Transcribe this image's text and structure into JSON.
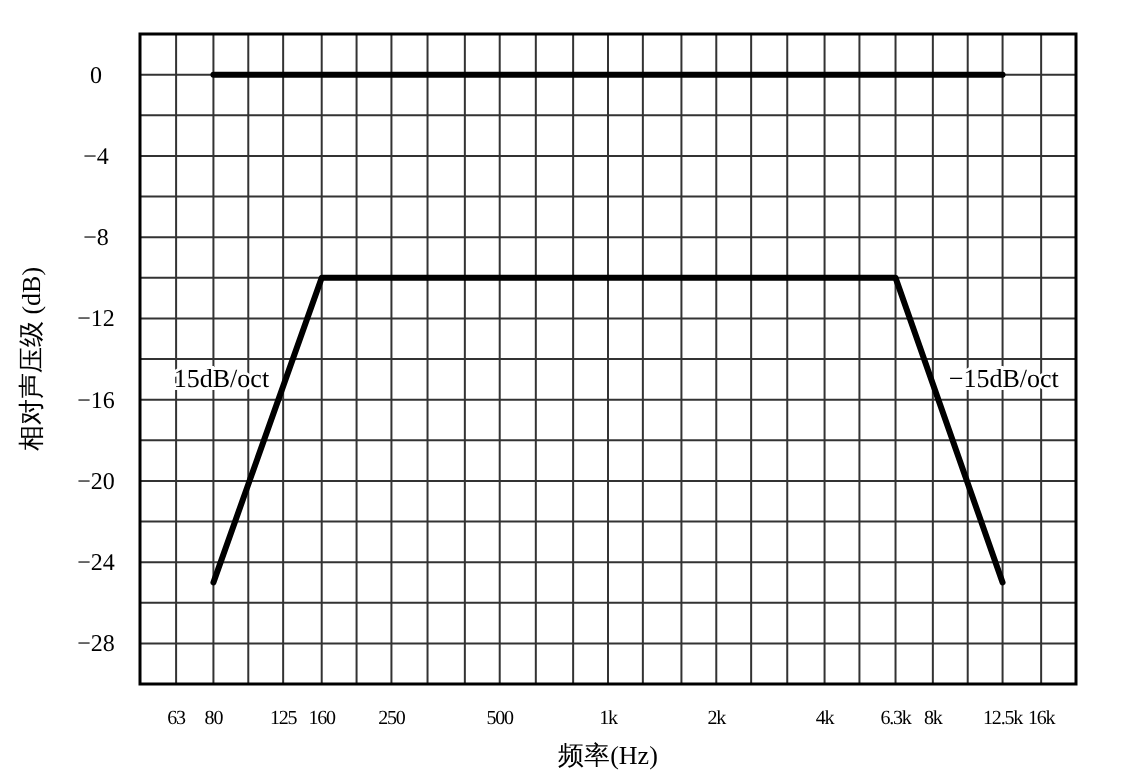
{
  "chart_data": {
    "type": "line",
    "xlabel": "频率(Hz)",
    "ylabel": "相对声压级 (dB)",
    "log": "x",
    "grid": true,
    "xlim": [
      50,
      20000
    ],
    "ylim": [
      -30,
      2
    ],
    "xticks": [
      {
        "value": 50,
        "label": null
      },
      {
        "value": 63,
        "label": "63"
      },
      {
        "value": 80,
        "label": "80"
      },
      {
        "value": 100,
        "label": null
      },
      {
        "value": 125,
        "label": "125"
      },
      {
        "value": 160,
        "label": "160"
      },
      {
        "value": 200,
        "label": null
      },
      {
        "value": 250,
        "label": "250"
      },
      {
        "value": 315,
        "label": null
      },
      {
        "value": 400,
        "label": null
      },
      {
        "value": 500,
        "label": "500"
      },
      {
        "value": 630,
        "label": null
      },
      {
        "value": 800,
        "label": null
      },
      {
        "value": 1000,
        "label": "1k"
      },
      {
        "value": 1250,
        "label": null
      },
      {
        "value": 1600,
        "label": null
      },
      {
        "value": 2000,
        "label": "2k"
      },
      {
        "value": 2500,
        "label": null
      },
      {
        "value": 3150,
        "label": null
      },
      {
        "value": 4000,
        "label": "4k"
      },
      {
        "value": 5000,
        "label": null
      },
      {
        "value": 6300,
        "label": "6.3k"
      },
      {
        "value": 8000,
        "label": "8k"
      },
      {
        "value": 10000,
        "label": null
      },
      {
        "value": 12500,
        "label": "12.5k"
      },
      {
        "value": 16000,
        "label": "16k"
      },
      {
        "value": 20000,
        "label": null
      }
    ],
    "yticks": [
      {
        "value": 2,
        "label": null
      },
      0,
      {
        "value": -2,
        "label": null
      },
      -4,
      {
        "value": -6,
        "label": null
      },
      -8,
      {
        "value": -10,
        "label": null
      },
      -12,
      {
        "value": -14,
        "label": null
      },
      -16,
      {
        "value": -18,
        "label": null
      },
      -20,
      {
        "value": -22,
        "label": null
      },
      -24,
      {
        "value": -26,
        "label": null
      },
      -28,
      {
        "value": -30,
        "label": null
      }
    ],
    "series": [
      {
        "color": "#000000",
        "x": [
          80,
          12500
        ],
        "values": [
          0,
          0
        ]
      },
      {
        "color": "#000000",
        "x": [
          80,
          160,
          6300,
          12500
        ],
        "values": [
          -25,
          -10,
          -10,
          -25
        ]
      }
    ],
    "annotations": [
      {
        "text": "15dB/oct",
        "x": 125,
        "y": -15
      },
      {
        "text": "−15dB/oct",
        "x": 8000,
        "y": -15
      }
    ]
  }
}
